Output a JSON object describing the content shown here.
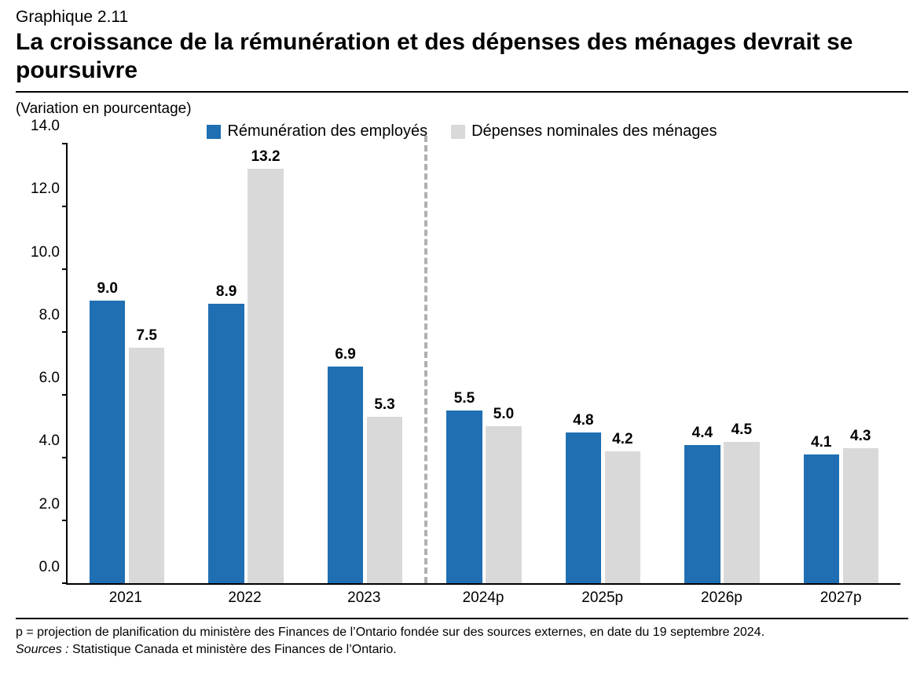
{
  "supertitle": "Graphique 2.11",
  "title": "La croissance de la rémunération et des dépenses des ménages devrait se poursuivre",
  "subtitle": "(Variation en pourcentage)",
  "legend": {
    "series1": {
      "label": "Rémunération des employés",
      "color": "#1f6fb2"
    },
    "series2": {
      "label": "Dépenses nominales des ménages",
      "color": "#d9d9d9"
    }
  },
  "chart": {
    "type": "bar",
    "ylim": [
      0.0,
      14.0
    ],
    "ytick_step": 2.0,
    "yticks": [
      "0.0",
      "2.0",
      "4.0",
      "6.0",
      "8.0",
      "10.0",
      "12.0",
      "14.0"
    ],
    "categories": [
      "2021",
      "2022",
      "2023",
      "2024p",
      "2025p",
      "2026p",
      "2027p"
    ],
    "divider_after_index": 2,
    "bar_width_ratio": 0.3,
    "bar_gap_ratio": 0.03,
    "group_gap_ratio": 0.37,
    "series": [
      {
        "name": "series1",
        "color": "#1f6fb2",
        "values": [
          9.0,
          8.9,
          6.9,
          5.5,
          4.8,
          4.4,
          4.1
        ],
        "labels": [
          "9.0",
          "8.9",
          "6.9",
          "5.5",
          "4.8",
          "4.4",
          "4.1"
        ]
      },
      {
        "name": "series2",
        "color": "#d9d9d9",
        "values": [
          7.5,
          13.2,
          5.3,
          5.0,
          4.2,
          4.5,
          4.3
        ],
        "labels": [
          "7.5",
          "13.2",
          "5.3",
          "5.0",
          "4.2",
          "4.5",
          "4.3"
        ]
      }
    ],
    "label_fontsize": 19,
    "label_fontweight": "bold",
    "axis_color": "#000000",
    "background_color": "#ffffff",
    "divider_color": "#b0b0b0"
  },
  "footnote": "p = projection de planification du ministère des Finances de l’Ontario fondée sur des sources externes, en date du 19 septembre 2024.",
  "sources_label": "Sources :",
  "sources_text": " Statistique Canada et ministère des Finances de l’Ontario."
}
